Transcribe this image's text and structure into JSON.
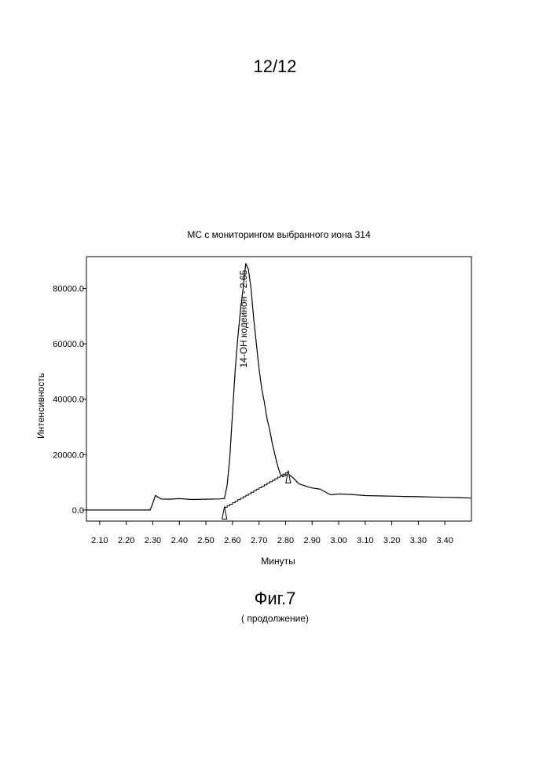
{
  "page": {
    "number": "12/12",
    "figure_caption": "Фиг.7",
    "figure_subcaption": "( продолжение)"
  },
  "chart_data": {
    "type": "line",
    "title": "МС с мониторингом выбранного иона 314",
    "xlabel": "Минуты",
    "ylabel": "Интенсивность",
    "xlim": [
      2.05,
      3.5
    ],
    "ylim": [
      -4000,
      91500
    ],
    "x_ticks": [
      2.1,
      2.2,
      2.3,
      2.4,
      2.5,
      2.6,
      2.7,
      2.8,
      2.9,
      3.0,
      3.1,
      3.2,
      3.3,
      3.4
    ],
    "x_tick_labels": [
      "2.10",
      "2.20",
      "2.30",
      "2.40",
      "2.50",
      "2.60",
      "2.70",
      "2.80",
      "2.90",
      "3.00",
      "3.10",
      "3.20",
      "3.30",
      "3.40"
    ],
    "y_ticks": [
      0,
      20000,
      40000,
      60000,
      80000
    ],
    "y_tick_labels": [
      "0.0",
      "20000.0",
      "40000.0",
      "60000.0",
      "80000.0"
    ],
    "grid": false,
    "series": [
      {
        "color": "#000000",
        "x": [
          2.05,
          2.29,
          2.3,
          2.31,
          2.33,
          2.36,
          2.4,
          2.45,
          2.5,
          2.55,
          2.57,
          2.58,
          2.59,
          2.6,
          2.61,
          2.62,
          2.63,
          2.64,
          2.65,
          2.66,
          2.67,
          2.68,
          2.69,
          2.7,
          2.71,
          2.72,
          2.73,
          2.74,
          2.75,
          2.76,
          2.77,
          2.78,
          2.79,
          2.8,
          2.81,
          2.83,
          2.85,
          2.88,
          2.9,
          2.93,
          2.95,
          2.97,
          3.0,
          3.05,
          3.1,
          3.15,
          3.2,
          3.25,
          3.3,
          3.35,
          3.4,
          3.45,
          3.5
        ],
        "y": [
          0,
          0,
          2500,
          5300,
          4000,
          3900,
          4100,
          3800,
          3900,
          4000,
          4200,
          9000,
          19000,
          35000,
          50000,
          62000,
          72000,
          80000,
          89000,
          87000,
          80000,
          69000,
          60000,
          51000,
          44000,
          39000,
          33000,
          29000,
          24000,
          20000,
          16000,
          13000,
          12000,
          12500,
          13000,
          11500,
          9500,
          8500,
          8000,
          7500,
          6500,
          5500,
          5800,
          5600,
          5200,
          5100,
          5000,
          4900,
          4800,
          4700,
          4600,
          4500,
          4300
        ]
      }
    ],
    "baseline": {
      "x": [
        2.57,
        2.81
      ],
      "y": [
        1000,
        14000
      ]
    },
    "markers": [
      {
        "x": 2.57,
        "y": 1000
      },
      {
        "x": 2.81,
        "y": 14000
      }
    ],
    "annotations": [
      {
        "text": "14-OH кодеинон - 2.65",
        "x": 2.65,
        "y": 89000
      }
    ]
  }
}
